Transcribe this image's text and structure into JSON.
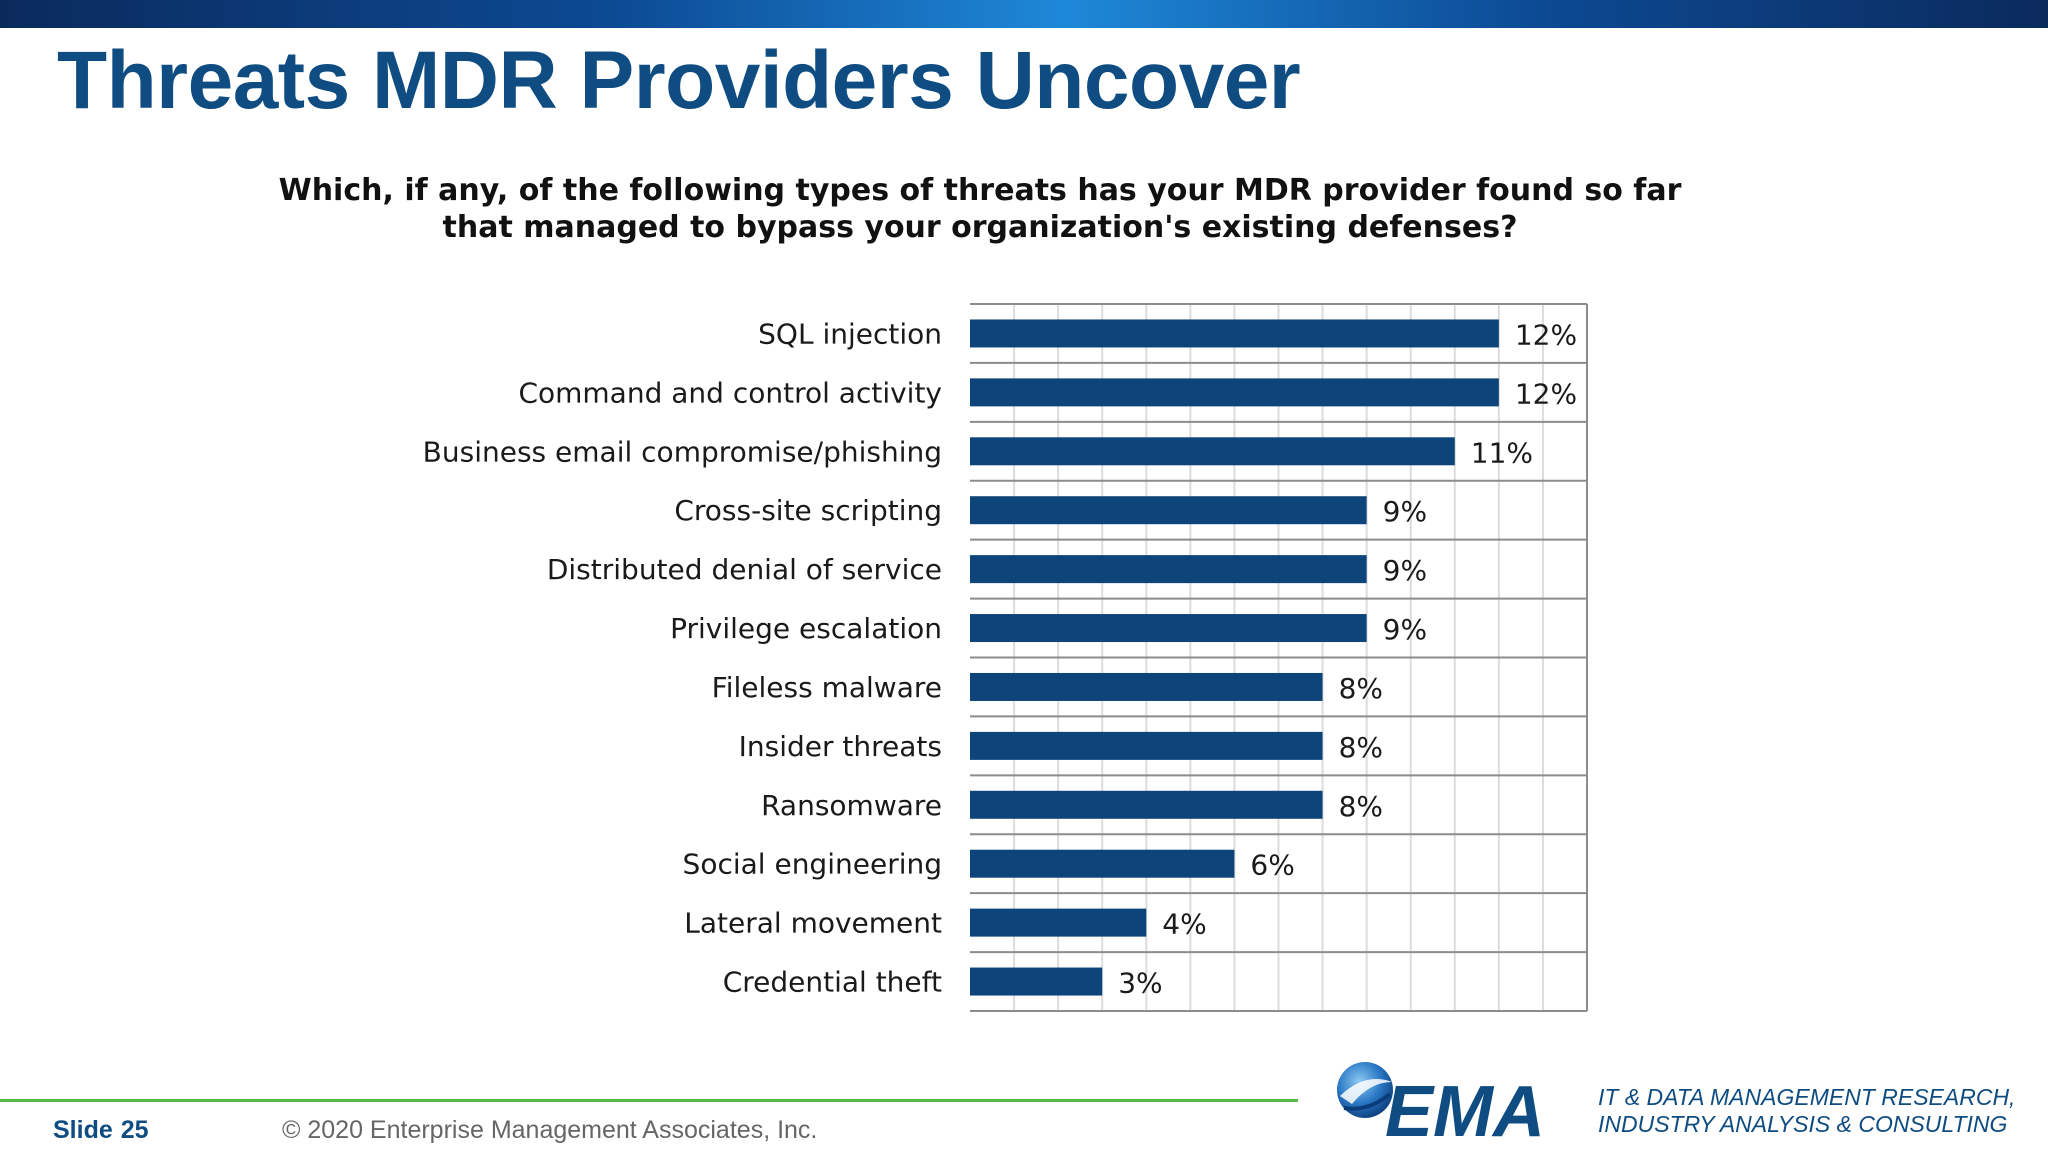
{
  "slide": {
    "title": "Threats MDR Providers Uncover",
    "question": "Which, if any, of the following types of threats has your MDR provider found so far that managed to bypass your organization's existing defenses?"
  },
  "footer": {
    "slide_label": "Slide",
    "slide_number": "25",
    "copyright": "© 2020  Enterprise Management Associates, Inc.",
    "logo_text": "EMA",
    "tagline_line1": "IT & DATA MANAGEMENT RESEARCH,",
    "tagline_line2": "INDUSTRY ANALYSIS & CONSULTING"
  },
  "colors": {
    "title": "#0f4c81",
    "bar": "#0d4479",
    "footer_line": "#59b847"
  },
  "chart_data": {
    "type": "bar",
    "orientation": "horizontal",
    "title": "Which, if any, of the following types of threats has your MDR provider found so far that managed to bypass your organization's existing defenses?",
    "xlabel": "",
    "ylabel": "",
    "xlim": [
      0,
      14
    ],
    "grid": true,
    "legend": "none",
    "categories": [
      "SQL injection",
      "Command and control activity",
      "Business email compromise/phishing",
      "Cross-site scripting",
      "Distributed denial of service",
      "Privilege escalation",
      "Fileless malware",
      "Insider threats",
      "Ransomware",
      "Social engineering",
      "Lateral movement",
      "Credential theft"
    ],
    "values": [
      12,
      12,
      11,
      9,
      9,
      9,
      8,
      8,
      8,
      6,
      4,
      3
    ],
    "value_labels": [
      "12%",
      "12%",
      "11%",
      "9%",
      "9%",
      "9%",
      "8%",
      "8%",
      "8%",
      "6%",
      "4%",
      "3%"
    ]
  }
}
